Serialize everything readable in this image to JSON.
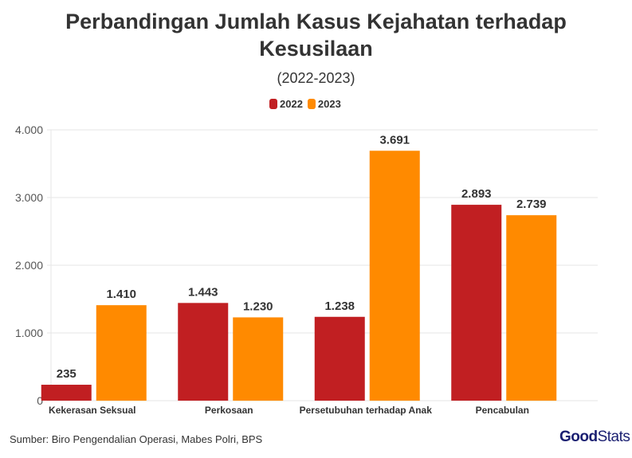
{
  "title_lines": [
    "Perbandingan Jumlah Kasus Kejahatan terhadap",
    "Kesusilaan"
  ],
  "subtitle": "(2022-2023)",
  "source": "Sumber: Biro Pengendalian Operasi, Mabes Polri, BPS",
  "logo": {
    "bold": "Good",
    "regular": "Stats"
  },
  "colors": {
    "2022": "#c11f22",
    "2023": "#ff8a00"
  },
  "chart_data": {
    "type": "bar",
    "categories": [
      "Kekerasan Seksual",
      "Perkosaan",
      "Persetubuhan terhadap Anak",
      "Pencabulan"
    ],
    "series": [
      {
        "name": "2022",
        "values": [
          235,
          1443,
          1238,
          2893
        ],
        "labels": [
          "235",
          "1.443",
          "1.238",
          "2.893"
        ]
      },
      {
        "name": "2023",
        "values": [
          1410,
          1230,
          3691,
          2739
        ],
        "labels": [
          "1.410",
          "1.230",
          "3.691",
          "2.739"
        ]
      }
    ],
    "ylim": [
      0,
      4000
    ],
    "yticks": [
      0,
      1000,
      2000,
      3000,
      4000
    ],
    "ytick_labels": [
      "0",
      "1.000",
      "2.000",
      "3.000",
      "4.000"
    ],
    "grid": true,
    "legend": "top-center",
    "xlabel": "",
    "ylabel": ""
  }
}
